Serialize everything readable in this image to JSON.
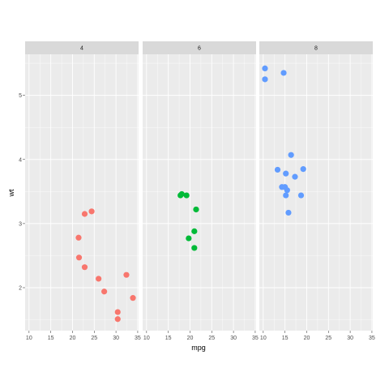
{
  "chart_data": {
    "type": "scatter",
    "facet_by": "cyl",
    "xlabel": "mpg",
    "ylabel": "wt",
    "xlim": [
      9.1,
      35.2
    ],
    "ylim": [
      1.33,
      5.64
    ],
    "x_ticks": [
      10,
      15,
      20,
      25,
      30,
      35
    ],
    "y_ticks": [
      2,
      3,
      4,
      5
    ],
    "grid": true,
    "legend": "none",
    "colors": {
      "panel_bg": "#ebebeb",
      "strip_bg": "#d9d9d9",
      "grid": "#ffffff"
    },
    "panels": [
      {
        "label": "4",
        "color": "#F8766D",
        "points": [
          {
            "x": 22.8,
            "y": 3.15
          },
          {
            "x": 24.4,
            "y": 3.19
          },
          {
            "x": 21.4,
            "y": 2.78
          },
          {
            "x": 21.5,
            "y": 2.47
          },
          {
            "x": 22.8,
            "y": 2.32
          },
          {
            "x": 26.0,
            "y": 2.14
          },
          {
            "x": 32.4,
            "y": 2.2
          },
          {
            "x": 27.3,
            "y": 1.94
          },
          {
            "x": 33.9,
            "y": 1.84
          },
          {
            "x": 30.4,
            "y": 1.62
          },
          {
            "x": 30.4,
            "y": 1.51
          }
        ]
      },
      {
        "label": "6",
        "color": "#00BA38",
        "points": [
          {
            "x": 17.8,
            "y": 3.44
          },
          {
            "x": 18.1,
            "y": 3.46
          },
          {
            "x": 19.2,
            "y": 3.44
          },
          {
            "x": 21.4,
            "y": 3.22
          },
          {
            "x": 21.0,
            "y": 2.88
          },
          {
            "x": 19.7,
            "y": 2.77
          },
          {
            "x": 21.0,
            "y": 2.62
          }
        ]
      },
      {
        "label": "8",
        "color": "#619CFF",
        "points": [
          {
            "x": 10.4,
            "y": 5.42
          },
          {
            "x": 10.4,
            "y": 5.25
          },
          {
            "x": 14.7,
            "y": 5.35
          },
          {
            "x": 16.4,
            "y": 4.07
          },
          {
            "x": 13.3,
            "y": 3.84
          },
          {
            "x": 19.2,
            "y": 3.85
          },
          {
            "x": 15.2,
            "y": 3.78
          },
          {
            "x": 17.3,
            "y": 3.73
          },
          {
            "x": 14.3,
            "y": 3.57
          },
          {
            "x": 15.0,
            "y": 3.57
          },
          {
            "x": 15.5,
            "y": 3.52
          },
          {
            "x": 15.2,
            "y": 3.44
          },
          {
            "x": 18.7,
            "y": 3.44
          },
          {
            "x": 15.8,
            "y": 3.17
          }
        ]
      }
    ]
  }
}
